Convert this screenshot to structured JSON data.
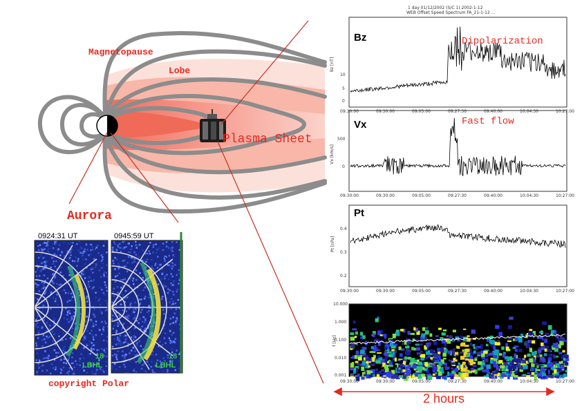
{
  "labels": {
    "magnetopause": "Magnetopause",
    "lobe": "Lobe",
    "plasma_sheet": "Plasma Sheet",
    "aurora": "Aurora",
    "copyright": "copyright Polar",
    "duration": "2 hours"
  },
  "aurora_images": [
    {
      "time": "0924:31 UT",
      "corner": "18",
      "band": "LBHL"
    },
    {
      "time": "0945:59 UT",
      "corner": "18",
      "band": "LBHL"
    }
  ],
  "plots": {
    "header_line1": "1 day 01/12/2002 (S/C 1) 2002-1-12",
    "header_line2": "WEB Offset Speed Spectrum FA_21-1-12 ...",
    "panels": [
      {
        "name": "Bz",
        "annotation": "Dipolarization",
        "ylabel": "Bz [nT]",
        "yticks": [
          "10",
          "5",
          "0"
        ]
      },
      {
        "name": "Vx",
        "annotation": "Fast flow",
        "ylabel": "Vx [km/s]",
        "yticks": [
          "500",
          "0"
        ]
      },
      {
        "name": "Pt",
        "annotation": "",
        "ylabel": "Pt [nPa]",
        "yticks": [
          "0.4",
          "0.3",
          "0.2"
        ]
      },
      {
        "name": "",
        "annotation": "",
        "ylabel": "f [Hz]",
        "yticks": [
          "10.000",
          "1.000",
          "0.100",
          "0.010",
          "0.001"
        ]
      }
    ],
    "xticks": [
      "09:30:00",
      "09:30:00",
      "09:05:00",
      "09:27:30",
      "09:40:00",
      "10:04:30",
      "10:27:00"
    ]
  },
  "colors": {
    "field_line": "#8c8c8c",
    "lobe_pink": "#f5a08f",
    "sheet_pink": "#f07060",
    "label_red": "#e8281e"
  },
  "icons": {
    "earth": "earth-icon",
    "spacecraft": "spacecraft-icon"
  }
}
